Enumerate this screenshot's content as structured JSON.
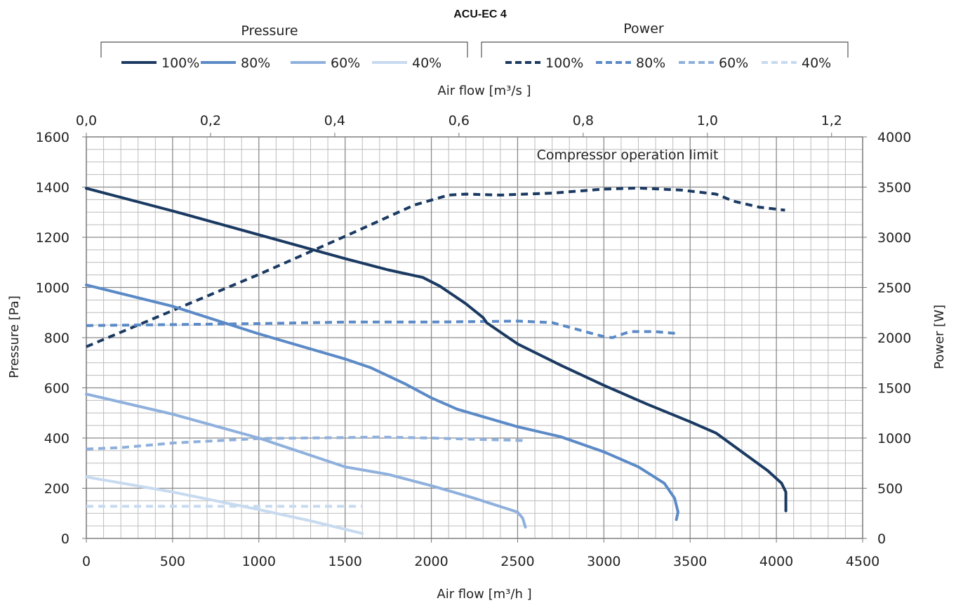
{
  "chart_data": {
    "type": "line",
    "title": "ACU-EC 4",
    "xlabel": "Air flow  [m³/h ]",
    "x2label": "Air flow  [m³/s ]",
    "ylabel": "Pressure [Pa]",
    "y2label": "Power [W]",
    "xlim": [
      0,
      4500
    ],
    "x2lim": [
      0,
      1.25
    ],
    "ylim": [
      0,
      1600
    ],
    "y2lim": [
      0,
      4000
    ],
    "x_ticks": [
      0,
      500,
      1000,
      1500,
      2000,
      2500,
      3000,
      3500,
      4000,
      4500
    ],
    "x_tick_labels": [
      "0",
      "500",
      "1000",
      "1500",
      "2000",
      "2500",
      "3000",
      "3500",
      "4000",
      "4500"
    ],
    "x2_ticks": [
      0,
      0.2,
      0.4,
      0.6,
      0.8,
      1.0,
      1.2
    ],
    "x2_tick_labels": [
      "0,0",
      "0,2",
      "0,4",
      "0,6",
      "0,8",
      "1,0",
      "1,2"
    ],
    "y_ticks": [
      0,
      200,
      400,
      600,
      800,
      1000,
      1200,
      1400,
      1600
    ],
    "y_tick_labels": [
      "0",
      "200",
      "400",
      "600",
      "800",
      "1000",
      "1200",
      "1400",
      "1600"
    ],
    "y2_ticks": [
      0,
      500,
      1000,
      1500,
      2000,
      2500,
      3000,
      3500,
      4000
    ],
    "y2_tick_labels": [
      "0",
      "500",
      "1000",
      "1500",
      "2000",
      "2500",
      "3000",
      "3500",
      "4000"
    ],
    "grid": true,
    "legend_groups": [
      {
        "label": "Pressure",
        "style": "solid",
        "entries": [
          "100%",
          "80%",
          "60%",
          "40%"
        ]
      },
      {
        "label": "Power",
        "style": "dashed",
        "entries": [
          "100%",
          "80%",
          "60%",
          "40%"
        ]
      }
    ],
    "annotations": [
      {
        "text": "Compressor operation limit",
        "x": 2550,
        "y": 1525
      }
    ],
    "series": [
      {
        "group": "Pressure",
        "name": "100%",
        "axis": "left",
        "style": "solid",
        "color": "#1b3a62",
        "points": [
          [
            0,
            1395
          ],
          [
            500,
            1305
          ],
          [
            1000,
            1210
          ],
          [
            1500,
            1115
          ],
          [
            1750,
            1070
          ],
          [
            1950,
            1040
          ],
          [
            2050,
            1005
          ],
          [
            2200,
            935
          ],
          [
            2300,
            880
          ],
          [
            2320,
            860
          ],
          [
            2500,
            775
          ],
          [
            2750,
            690
          ],
          [
            3000,
            610
          ],
          [
            3250,
            535
          ],
          [
            3500,
            465
          ],
          [
            3650,
            420
          ],
          [
            3800,
            345
          ],
          [
            3950,
            270
          ],
          [
            4030,
            220
          ],
          [
            4055,
            185
          ],
          [
            4055,
            110
          ]
        ]
      },
      {
        "group": "Pressure",
        "name": "80%",
        "axis": "left",
        "style": "solid",
        "color": "#5b8ac7",
        "points": [
          [
            0,
            1010
          ],
          [
            500,
            925
          ],
          [
            1000,
            815
          ],
          [
            1500,
            715
          ],
          [
            1650,
            680
          ],
          [
            1850,
            615
          ],
          [
            2000,
            560
          ],
          [
            2150,
            515
          ],
          [
            2500,
            445
          ],
          [
            2750,
            405
          ],
          [
            3000,
            345
          ],
          [
            3200,
            285
          ],
          [
            3350,
            220
          ],
          [
            3410,
            160
          ],
          [
            3430,
            105
          ],
          [
            3420,
            75
          ]
        ]
      },
      {
        "group": "Pressure",
        "name": "60%",
        "axis": "left",
        "style": "solid",
        "color": "#8fb0dd",
        "points": [
          [
            0,
            575
          ],
          [
            500,
            495
          ],
          [
            1000,
            400
          ],
          [
            1500,
            285
          ],
          [
            1750,
            255
          ],
          [
            2000,
            210
          ],
          [
            2250,
            160
          ],
          [
            2500,
            105
          ],
          [
            2530,
            80
          ],
          [
            2545,
            45
          ]
        ]
      },
      {
        "group": "Pressure",
        "name": "40%",
        "axis": "left",
        "style": "solid",
        "color": "#c7daef",
        "points": [
          [
            0,
            245
          ],
          [
            500,
            185
          ],
          [
            1000,
            115
          ],
          [
            1300,
            70
          ],
          [
            1600,
            20
          ]
        ]
      },
      {
        "group": "Power",
        "name": "100%",
        "axis": "right",
        "style": "dashed",
        "color": "#1b3a62",
        "points": [
          [
            0,
            1910
          ],
          [
            500,
            2270
          ],
          [
            1000,
            2630
          ],
          [
            1500,
            3010
          ],
          [
            1900,
            3320
          ],
          [
            2100,
            3420
          ],
          [
            2200,
            3430
          ],
          [
            2400,
            3420
          ],
          [
            2700,
            3440
          ],
          [
            3000,
            3480
          ],
          [
            3200,
            3490
          ],
          [
            3450,
            3470
          ],
          [
            3650,
            3430
          ],
          [
            3750,
            3360
          ],
          [
            3900,
            3300
          ],
          [
            4050,
            3270
          ]
        ]
      },
      {
        "group": "Power",
        "name": "80%",
        "axis": "right",
        "style": "dashed",
        "color": "#5b8ac7",
        "points": [
          [
            0,
            2120
          ],
          [
            500,
            2130
          ],
          [
            1000,
            2140
          ],
          [
            1500,
            2155
          ],
          [
            2000,
            2155
          ],
          [
            2500,
            2165
          ],
          [
            2700,
            2150
          ],
          [
            2850,
            2080
          ],
          [
            3000,
            2010
          ],
          [
            3050,
            2000
          ],
          [
            3150,
            2060
          ],
          [
            3300,
            2060
          ],
          [
            3430,
            2040
          ]
        ]
      },
      {
        "group": "Power",
        "name": "60%",
        "axis": "right",
        "style": "dashed",
        "color": "#8fb0dd",
        "points": [
          [
            0,
            890
          ],
          [
            200,
            905
          ],
          [
            500,
            950
          ],
          [
            1000,
            995
          ],
          [
            1500,
            1005
          ],
          [
            1700,
            1010
          ],
          [
            2000,
            1000
          ],
          [
            2300,
            985
          ],
          [
            2550,
            975
          ]
        ]
      },
      {
        "group": "Power",
        "name": "40%",
        "axis": "right",
        "style": "dashed",
        "color": "#c7daef",
        "points": [
          [
            0,
            320
          ],
          [
            1600,
            320
          ]
        ]
      }
    ]
  }
}
